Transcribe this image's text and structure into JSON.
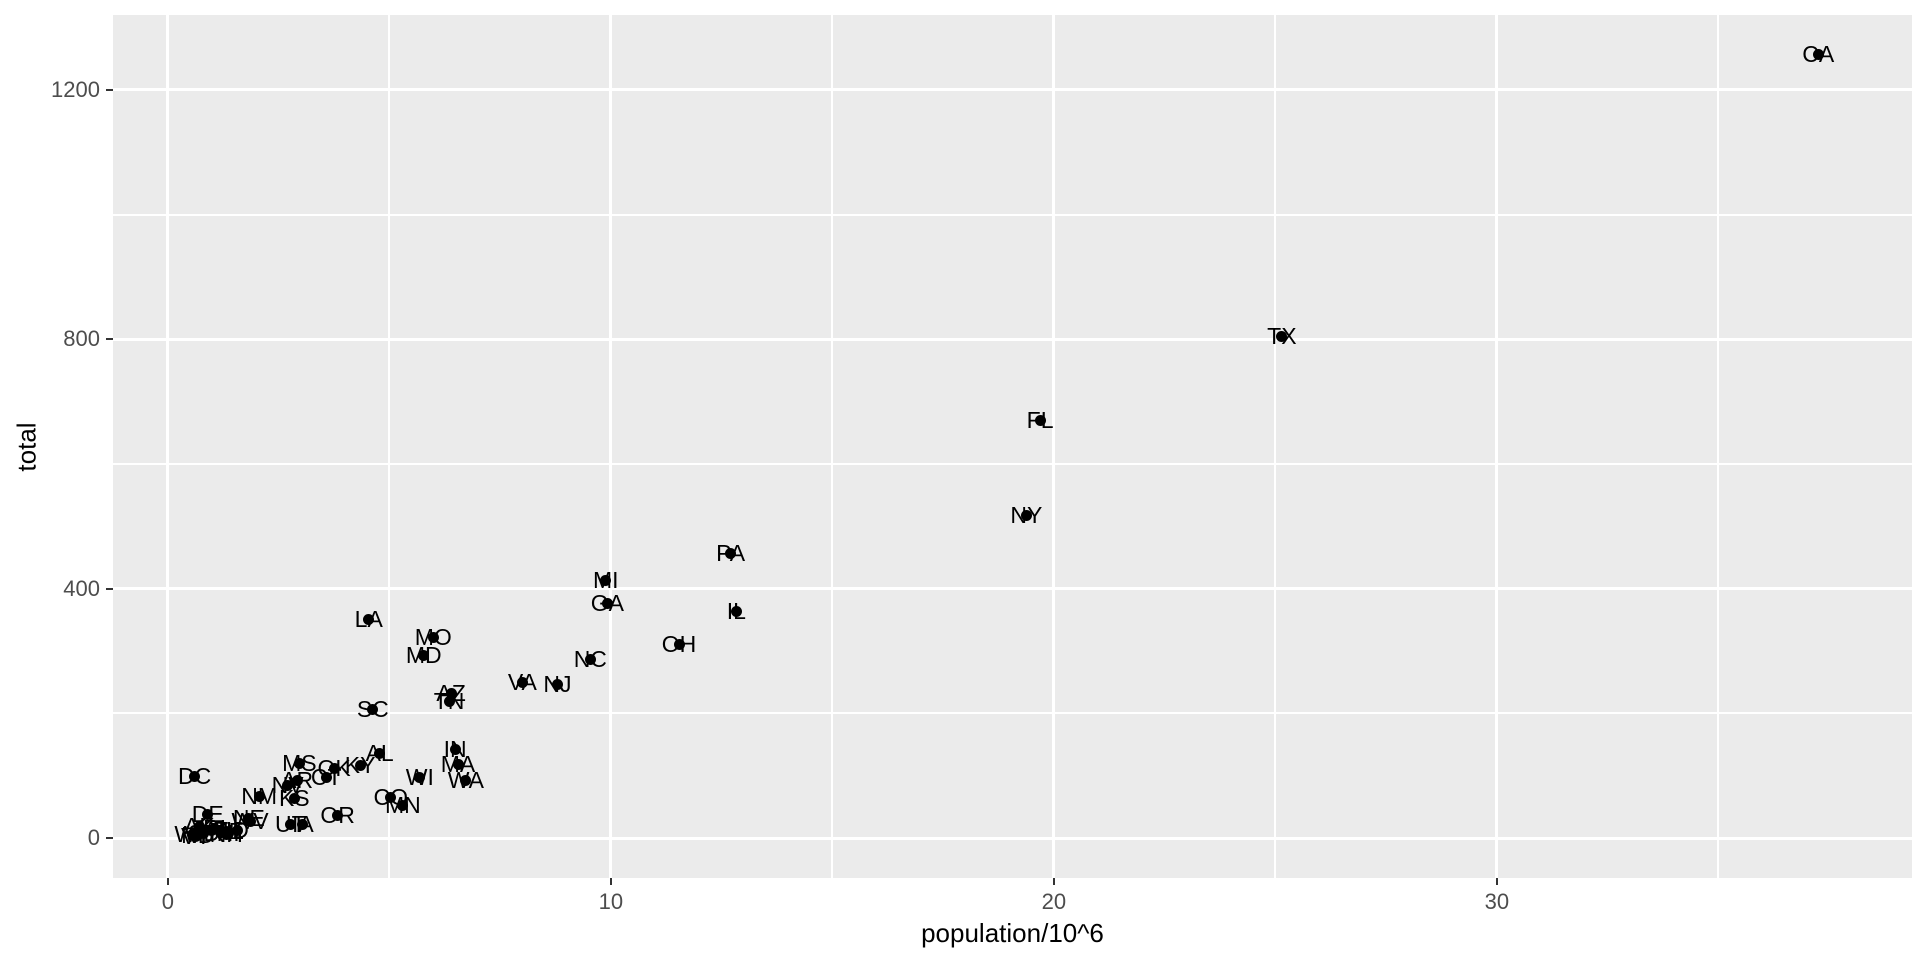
{
  "chart_data": {
    "type": "scatter",
    "title": "",
    "xlabel": "population/10^6",
    "ylabel": "total",
    "x_ticks": [
      0,
      10,
      20,
      30
    ],
    "y_ticks": [
      0,
      400,
      800,
      1200
    ],
    "x_minor_ticks": [
      5,
      15,
      25,
      35
    ],
    "y_minor_ticks": [
      200,
      600,
      1000
    ],
    "xlim": [
      -1.24,
      39.37
    ],
    "ylim": [
      -64,
      1320
    ],
    "grid": true,
    "legend_position": "none",
    "colors": {
      "panel_background": "#EBEBEB",
      "gridline": "#FFFFFF",
      "point": "#000000",
      "label_text": "#000000",
      "tick_label": "#4D4D4D",
      "axis_title": "#000000",
      "tick_mark": "#333333"
    },
    "points": [
      {
        "abb": "AL",
        "pop": 4.78,
        "total": 135
      },
      {
        "abb": "AK",
        "pop": 0.71,
        "total": 19
      },
      {
        "abb": "AZ",
        "pop": 6.392,
        "total": 232
      },
      {
        "abb": "AR",
        "pop": 2.916,
        "total": 93
      },
      {
        "abb": "CA",
        "pop": 37.254,
        "total": 1257
      },
      {
        "abb": "CO",
        "pop": 5.029,
        "total": 65
      },
      {
        "abb": "CT",
        "pop": 3.574,
        "total": 97
      },
      {
        "abb": "DE",
        "pop": 0.898,
        "total": 38
      },
      {
        "abb": "DC",
        "pop": 0.602,
        "total": 99
      },
      {
        "abb": "FL",
        "pop": 19.688,
        "total": 669
      },
      {
        "abb": "GA",
        "pop": 9.92,
        "total": 376
      },
      {
        "abb": "HI",
        "pop": 1.36,
        "total": 7
      },
      {
        "abb": "ID",
        "pop": 1.568,
        "total": 12
      },
      {
        "abb": "IL",
        "pop": 12.831,
        "total": 364
      },
      {
        "abb": "IN",
        "pop": 6.484,
        "total": 142
      },
      {
        "abb": "IA",
        "pop": 3.046,
        "total": 21
      },
      {
        "abb": "KS",
        "pop": 2.853,
        "total": 63
      },
      {
        "abb": "KY",
        "pop": 4.339,
        "total": 116
      },
      {
        "abb": "LA",
        "pop": 4.533,
        "total": 351
      },
      {
        "abb": "ME",
        "pop": 1.328,
        "total": 11
      },
      {
        "abb": "MD",
        "pop": 5.774,
        "total": 293
      },
      {
        "abb": "MA",
        "pop": 6.548,
        "total": 118
      },
      {
        "abb": "MI",
        "pop": 9.884,
        "total": 413
      },
      {
        "abb": "MN",
        "pop": 5.304,
        "total": 53
      },
      {
        "abb": "MS",
        "pop": 2.967,
        "total": 120
      },
      {
        "abb": "MO",
        "pop": 5.989,
        "total": 321
      },
      {
        "abb": "MT",
        "pop": 0.989,
        "total": 12
      },
      {
        "abb": "NE",
        "pop": 1.826,
        "total": 32
      },
      {
        "abb": "NV",
        "pop": 2.701,
        "total": 84
      },
      {
        "abb": "NH",
        "pop": 1.316,
        "total": 5
      },
      {
        "abb": "NJ",
        "pop": 8.792,
        "total": 246
      },
      {
        "abb": "NM",
        "pop": 2.059,
        "total": 67
      },
      {
        "abb": "NY",
        "pop": 19.378,
        "total": 517
      },
      {
        "abb": "NC",
        "pop": 9.535,
        "total": 286
      },
      {
        "abb": "ND",
        "pop": 0.673,
        "total": 4
      },
      {
        "abb": "OH",
        "pop": 11.537,
        "total": 310
      },
      {
        "abb": "OK",
        "pop": 3.751,
        "total": 111
      },
      {
        "abb": "OR",
        "pop": 3.831,
        "total": 36
      },
      {
        "abb": "PA",
        "pop": 12.702,
        "total": 457
      },
      {
        "abb": "RI",
        "pop": 1.053,
        "total": 16
      },
      {
        "abb": "SC",
        "pop": 4.625,
        "total": 207
      },
      {
        "abb": "SD",
        "pop": 0.814,
        "total": 8
      },
      {
        "abb": "TN",
        "pop": 6.346,
        "total": 219
      },
      {
        "abb": "TX",
        "pop": 25.146,
        "total": 805
      },
      {
        "abb": "UT",
        "pop": 2.764,
        "total": 22
      },
      {
        "abb": "VT",
        "pop": 0.626,
        "total": 2
      },
      {
        "abb": "VA",
        "pop": 8.001,
        "total": 250
      },
      {
        "abb": "WA",
        "pop": 6.725,
        "total": 93
      },
      {
        "abb": "WV",
        "pop": 1.853,
        "total": 27
      },
      {
        "abb": "WI",
        "pop": 5.687,
        "total": 97
      },
      {
        "abb": "WY",
        "pop": 0.564,
        "total": 5
      }
    ]
  }
}
